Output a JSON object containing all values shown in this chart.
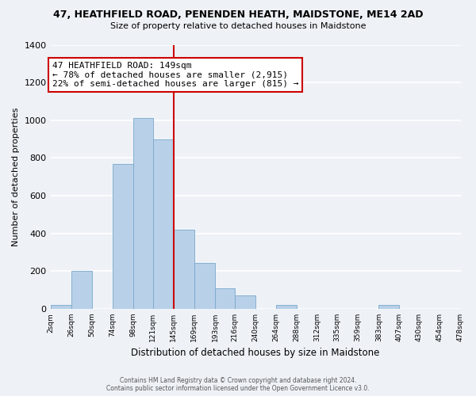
{
  "title": "47, HEATHFIELD ROAD, PENENDEN HEATH, MAIDSTONE, ME14 2AD",
  "subtitle": "Size of property relative to detached houses in Maidstone",
  "xlabel": "Distribution of detached houses by size in Maidstone",
  "ylabel": "Number of detached properties",
  "bar_color": "#b8d0e8",
  "bar_edge_color": "#7aa8cc",
  "reference_line_x": 145,
  "reference_line_color": "#cc0000",
  "annotation_title": "47 HEATHFIELD ROAD: 149sqm",
  "annotation_line1": "← 78% of detached houses are smaller (2,915)",
  "annotation_line2": "22% of semi-detached houses are larger (815) →",
  "annotation_box_color": "white",
  "annotation_box_edge_color": "#cc0000",
  "bin_edges": [
    2,
    26,
    50,
    74,
    98,
    121,
    145,
    169,
    193,
    216,
    240,
    264,
    288,
    312,
    335,
    359,
    383,
    407,
    430,
    454,
    478
  ],
  "bin_counts": [
    20,
    200,
    0,
    770,
    1010,
    900,
    420,
    245,
    110,
    70,
    0,
    20,
    0,
    0,
    0,
    0,
    20,
    0,
    0,
    0
  ],
  "ylim": [
    0,
    1400
  ],
  "yticks": [
    0,
    200,
    400,
    600,
    800,
    1000,
    1200,
    1400
  ],
  "xtick_labels": [
    "2sqm",
    "26sqm",
    "50sqm",
    "74sqm",
    "98sqm",
    "121sqm",
    "145sqm",
    "169sqm",
    "193sqm",
    "216sqm",
    "240sqm",
    "264sqm",
    "288sqm",
    "312sqm",
    "335sqm",
    "359sqm",
    "383sqm",
    "407sqm",
    "430sqm",
    "454sqm",
    "478sqm"
  ],
  "footer_line1": "Contains HM Land Registry data © Crown copyright and database right 2024.",
  "footer_line2": "Contains public sector information licensed under the Open Government Licence v3.0.",
  "bg_color": "#eef2f7",
  "grid_color": "#ffffff"
}
